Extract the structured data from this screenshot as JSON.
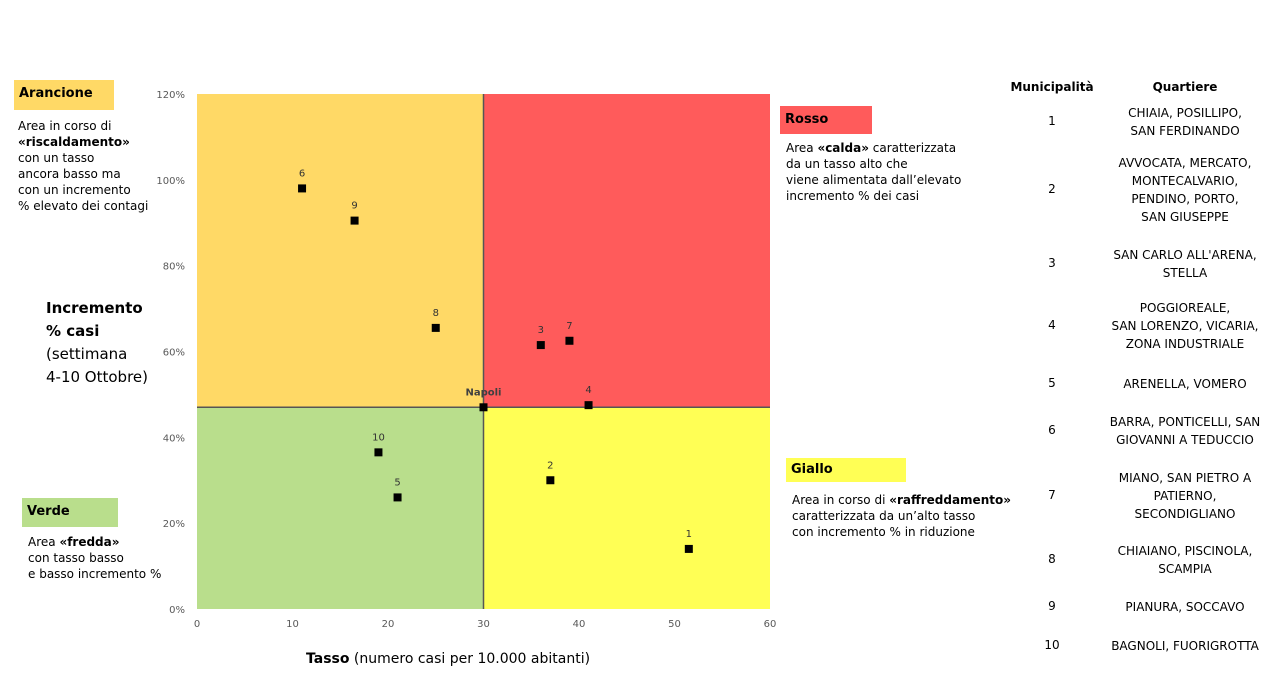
{
  "chart_data": {
    "type": "scatter",
    "xlabel_bold": "Tasso",
    "xlabel_rest": " (numero casi per 10.000 abitanti)",
    "ylabel_bold_1": "Incremento",
    "ylabel_bold_2": "% casi",
    "ylabel_rest_1": "(settimana",
    "ylabel_rest_2": "4-10 Ottobre)",
    "xlim": [
      0,
      60
    ],
    "ylim": [
      0,
      1.2
    ],
    "x_ticks": [
      "0",
      "10",
      "20",
      "30",
      "40",
      "50",
      "60"
    ],
    "y_ticks": [
      "0%",
      "20%",
      "40%",
      "60%",
      "80%",
      "100%",
      "120%"
    ],
    "quadrant_split": {
      "x": 30,
      "y": 0.47
    },
    "quadrant_colors": {
      "top_left": "#FFD966",
      "top_right": "#FF5B5B",
      "bottom_left": "#B9DE8C",
      "bottom_right": "#FFFF55"
    },
    "points": [
      {
        "label": "1",
        "x": 51.5,
        "y": 0.14
      },
      {
        "label": "2",
        "x": 37,
        "y": 0.3
      },
      {
        "label": "3",
        "x": 36,
        "y": 0.615
      },
      {
        "label": "4",
        "x": 41,
        "y": 0.475
      },
      {
        "label": "5",
        "x": 21,
        "y": 0.26
      },
      {
        "label": "6",
        "x": 11,
        "y": 0.98
      },
      {
        "label": "7",
        "x": 39,
        "y": 0.625
      },
      {
        "label": "8",
        "x": 25,
        "y": 0.655
      },
      {
        "label": "9",
        "x": 16.5,
        "y": 0.905
      },
      {
        "label": "10",
        "x": 19,
        "y": 0.365
      },
      {
        "label": "Napoli",
        "x": 30,
        "y": 0.47
      }
    ]
  },
  "zones": {
    "arancione": {
      "title": "Arancione",
      "color": "#FFD966",
      "lines": [
        "Area in corso di",
        "«riscaldamento»",
        "con un tasso",
        "ancora basso ma",
        "con un incremento",
        "% elevato dei contagi"
      ]
    },
    "rosso": {
      "title": "Rosso",
      "color": "#FF5B5B",
      "line1_pre": "Area ",
      "line1_bold": "«calda»",
      "line1_post": " caratterizzata",
      "lines": [
        "da un tasso alto che",
        "viene alimentata dall’elevato",
        "incremento % dei casi"
      ]
    },
    "giallo": {
      "title": "Giallo",
      "color": "#FFFF55",
      "line1_pre": "Area in corso di ",
      "line1_bold": "«raffreddamento»",
      "lines": [
        "caratterizzata da un’alto tasso",
        "con incremento % in riduzione"
      ]
    },
    "verde": {
      "title": "Verde",
      "color": "#B9DE8C",
      "line1_pre": "Area ",
      "line1_bold": "«fredda»",
      "lines": [
        "con tasso basso",
        "e basso incremento %"
      ]
    }
  },
  "table": {
    "header_municipalita": "Municipalità",
    "header_quartiere": "Quartiere",
    "rows": [
      {
        "num": "1",
        "lines": [
          "CHIAIA, POSILLIPO,",
          "SAN FERDINANDO"
        ]
      },
      {
        "num": "2",
        "lines": [
          "AVVOCATA, MERCATO,",
          "MONTECALVARIO,",
          "PENDINO, PORTO,",
          "SAN GIUSEPPE"
        ]
      },
      {
        "num": "3",
        "lines": [
          "SAN CARLO ALL'ARENA,",
          "STELLA"
        ]
      },
      {
        "num": "4",
        "lines": [
          "POGGIOREALE,",
          "SAN LORENZO, VICARIA,",
          "ZONA INDUSTRIALE"
        ]
      },
      {
        "num": "5",
        "lines": [
          "ARENELLA, VOMERO"
        ]
      },
      {
        "num": "6",
        "lines": [
          "BARRA, PONTICELLI, SAN",
          "GIOVANNI A TEDUCCIO"
        ]
      },
      {
        "num": "7",
        "lines": [
          "MIANO, SAN PIETRO A",
          "PATIERNO,",
          "SECONDIGLIANO"
        ]
      },
      {
        "num": "8",
        "lines": [
          "CHIAIANO, PISCINOLA,",
          "SCAMPIA"
        ]
      },
      {
        "num": "9",
        "lines": [
          "PIANURA, SOCCAVO"
        ]
      },
      {
        "num": "10",
        "lines": [
          "BAGNOLI, FUORIGROTTA"
        ]
      }
    ]
  }
}
